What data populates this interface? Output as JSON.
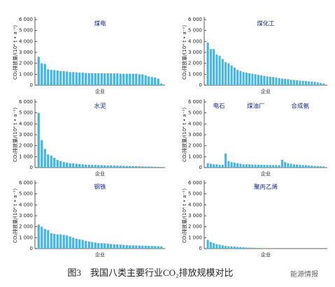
{
  "caption": "图3　我国八类主要行业CO₂排放规模对比",
  "watermark": "能源情报",
  "chart_data": [
    {
      "type": "bar",
      "title": "煤电",
      "ylabel": "CO₂排放量/(10⁴ t • a⁻¹)",
      "xlabel": "企业",
      "color": "#3fb6e6",
      "ylim": [
        0,
        6000
      ],
      "yticks": [
        0,
        {
          "value": 1000,
          "label": "1 000"
        },
        {
          "value": 2000,
          "label": "2 000"
        },
        {
          "value": 3000,
          "label": "3 000"
        },
        {
          "value": 4000,
          "label": "4 000"
        },
        {
          "value": 5000,
          "label": "5 000"
        },
        {
          "value": 6000,
          "label": "6 000"
        }
      ],
      "categories": [
        null,
        null,
        null,
        null,
        null,
        null,
        null,
        null,
        null,
        null,
        null,
        null,
        null,
        null,
        null,
        null,
        null,
        null,
        null,
        null,
        null,
        null,
        null,
        null,
        null,
        null,
        null,
        null,
        null,
        null,
        null,
        null,
        null,
        null,
        null,
        null,
        null,
        null,
        null,
        null
      ],
      "values": [
        2600,
        2000,
        1950,
        1450,
        1400,
        1380,
        1350,
        1300,
        1280,
        1250,
        1200,
        1200,
        1180,
        1150,
        1150,
        1120,
        1100,
        1100,
        1100,
        1100,
        1100,
        1080,
        1080,
        1080,
        1080,
        1080,
        1050,
        1050,
        1050,
        1050,
        1050,
        1050,
        1000,
        1000,
        900,
        800,
        750,
        700,
        600,
        150
      ]
    },
    {
      "type": "bar",
      "title": "煤化工",
      "ylabel": "CO₂排放量/(10⁴ t • a⁻¹)",
      "xlabel": "企业",
      "color": "#3fb6e6",
      "ylim": [
        0,
        6000
      ],
      "yticks": [
        0,
        {
          "value": 1000,
          "label": "1 000"
        },
        {
          "value": 2000,
          "label": "2 000"
        },
        {
          "value": 3000,
          "label": "3 000"
        },
        {
          "value": 4000,
          "label": "4 000"
        },
        {
          "value": 5000,
          "label": "5 000"
        },
        {
          "value": 6000,
          "label": "6 000"
        }
      ],
      "categories": [
        null,
        null,
        null,
        null,
        null,
        null,
        null,
        null,
        null,
        null,
        null,
        null,
        null,
        null,
        null,
        null,
        null,
        null,
        null,
        null,
        null,
        null,
        null,
        null,
        null,
        null,
        null,
        null,
        null,
        null,
        null,
        null,
        null,
        null,
        null,
        null,
        null,
        null,
        null,
        null
      ],
      "values": [
        3900,
        3300,
        3300,
        2800,
        2700,
        2400,
        2100,
        2000,
        1800,
        1600,
        1400,
        1300,
        1200,
        1150,
        1100,
        1050,
        1000,
        950,
        900,
        850,
        800,
        780,
        750,
        700,
        650,
        600,
        580,
        550,
        500,
        480,
        450,
        420,
        400,
        380,
        350,
        320,
        300,
        250,
        200,
        150
      ]
    },
    {
      "type": "bar",
      "title": "水泥",
      "ylabel": "CO₂排放量/(10⁴ t • a⁻¹)",
      "xlabel": "企业",
      "color": "#3fb6e6",
      "ylim": [
        0,
        6000
      ],
      "yticks": [
        0,
        {
          "value": 1000,
          "label": "1 000"
        },
        {
          "value": 2000,
          "label": "2 000"
        },
        {
          "value": 3000,
          "label": "3 000"
        },
        {
          "value": 4000,
          "label": "4 000"
        },
        {
          "value": 5000,
          "label": "5 000"
        },
        {
          "value": 6000,
          "label": "6 000"
        }
      ],
      "categories": [
        null,
        null,
        null,
        null,
        null,
        null,
        null,
        null,
        null,
        null,
        null,
        null,
        null,
        null,
        null,
        null,
        null,
        null,
        null,
        null,
        null,
        null,
        null,
        null,
        null,
        null,
        null,
        null,
        null,
        null,
        null,
        null,
        null,
        null,
        null,
        null,
        null,
        null,
        null,
        null
      ],
      "values": [
        5000,
        2500,
        1700,
        1200,
        1100,
        900,
        700,
        600,
        500,
        450,
        400,
        380,
        350,
        320,
        300,
        280,
        260,
        250,
        240,
        230,
        220,
        210,
        200,
        200,
        190,
        180,
        170,
        160,
        150,
        150,
        140,
        130,
        120,
        110,
        100,
        100,
        90,
        80,
        70,
        60
      ]
    },
    {
      "type": "bar",
      "annotations": [
        "电石",
        "煤油厂",
        "合成氨"
      ],
      "ylabel": "CO₂排放量/(10⁴ t • a⁻¹)",
      "xlabel": "企业",
      "color": "#3fb6e6",
      "ylim": [
        0,
        6000
      ],
      "yticks": [
        0,
        {
          "value": 1000,
          "label": "1 000"
        },
        {
          "value": 2000,
          "label": "2 000"
        },
        {
          "value": 3000,
          "label": "3 000"
        },
        {
          "value": 4000,
          "label": "4 000"
        },
        {
          "value": 5000,
          "label": "5 000"
        },
        {
          "value": 6000,
          "label": "6 000"
        }
      ],
      "categories": [
        null,
        null,
        null,
        null,
        null,
        null,
        null,
        null,
        null,
        null,
        null,
        null,
        null,
        null,
        null,
        null,
        null,
        null,
        null,
        null,
        null,
        null,
        null,
        null,
        null,
        null,
        null,
        null,
        null,
        null,
        null,
        null,
        null,
        null,
        null,
        null,
        null,
        null,
        null,
        null
      ],
      "values": [
        400,
        350,
        300,
        300,
        250,
        250,
        1300,
        600,
        500,
        450,
        400,
        350,
        300,
        300,
        300,
        280,
        270,
        260,
        250,
        250,
        240,
        240,
        230,
        230,
        220,
        700,
        500,
        400,
        350,
        300,
        280,
        260,
        240,
        220,
        200,
        180,
        160,
        140,
        120,
        100
      ]
    },
    {
      "type": "bar",
      "title": "钢铁",
      "ylabel": "CO₂排放量/(10⁴ t • a⁻¹)",
      "xlabel": "企业",
      "color": "#3fb6e6",
      "ylim": [
        0,
        6000
      ],
      "yticks": [
        0,
        {
          "value": 1000,
          "label": "1 000"
        },
        {
          "value": 2000,
          "label": "2 000"
        },
        {
          "value": 3000,
          "label": "3 000"
        },
        {
          "value": 4000,
          "label": "4 000"
        },
        {
          "value": 5000,
          "label": "5 000"
        },
        {
          "value": 6000,
          "label": "6 000"
        }
      ],
      "categories": [
        null,
        null,
        null,
        null,
        null,
        null,
        null,
        null,
        null,
        null,
        null,
        null,
        null,
        null,
        null,
        null,
        null,
        null,
        null,
        null,
        null,
        null,
        null,
        null,
        null,
        null,
        null,
        null,
        null,
        null,
        null,
        null,
        null,
        null,
        null,
        null,
        null,
        null,
        null,
        null
      ],
      "values": [
        2200,
        2000,
        1800,
        1700,
        1400,
        1350,
        1300,
        1300,
        1250,
        1200,
        1100,
        1000,
        900,
        850,
        800,
        700,
        650,
        600,
        550,
        500,
        500,
        480,
        450,
        420,
        400,
        380,
        360,
        340,
        320,
        300,
        300,
        290,
        280,
        270,
        260,
        250,
        240,
        230,
        220,
        200
      ]
    },
    {
      "type": "bar",
      "title": "聚丙乙烯",
      "ylabel": "CO₂排放量/(10⁴ t • a⁻¹)",
      "xlabel": "企业",
      "color": "#3fb6e6",
      "ylim": [
        0,
        6000
      ],
      "yticks": [
        0,
        {
          "value": 1000,
          "label": "1 000"
        },
        {
          "value": 2000,
          "label": "2 000"
        },
        {
          "value": 3000,
          "label": "3 000"
        },
        {
          "value": 4000,
          "label": "4 000"
        },
        {
          "value": 5000,
          "label": "5 000"
        },
        {
          "value": 6000,
          "label": "6 000"
        }
      ],
      "categories": [
        null,
        null,
        null,
        null,
        null,
        null,
        null,
        null,
        null,
        null,
        null,
        null,
        null,
        null,
        null,
        null,
        null,
        null,
        null,
        null
      ],
      "values": [
        800,
        600,
        500,
        400,
        350,
        300,
        250,
        220,
        200,
        180,
        150,
        130,
        120,
        100,
        90,
        80,
        70,
        60,
        50,
        40
      ]
    }
  ]
}
